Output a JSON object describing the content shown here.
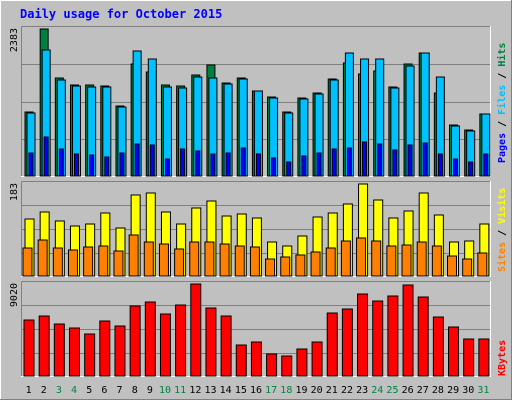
{
  "chart_data": {
    "type": "bar",
    "title": "Daily usage for October 2015",
    "categories": [
      "1",
      "2",
      "3",
      "4",
      "5",
      "6",
      "7",
      "8",
      "9",
      "10",
      "11",
      "12",
      "13",
      "14",
      "15",
      "16",
      "17",
      "18",
      "19",
      "20",
      "21",
      "22",
      "23",
      "24",
      "25",
      "26",
      "27",
      "28",
      "29",
      "30",
      "31"
    ],
    "weekend_days": [
      "3",
      "4",
      "10",
      "11",
      "17",
      "18",
      "24",
      "25",
      "31"
    ],
    "panels": [
      {
        "id": "hits",
        "max_label": "2383",
        "ylim": [
          0,
          2383
        ],
        "series": [
          {
            "name": "Hits",
            "color": "#008040",
            "values": [
              1030,
              2383,
              1590,
              1480,
              1470,
              1460,
              1140,
              1820,
              1690,
              1470,
              1460,
              1630,
              1800,
              1510,
              1590,
              1380,
              1280,
              1030,
              1260,
              1340,
              1580,
              1830,
              1660,
              1710,
              1450,
              1810,
              1990,
              1350,
              820,
              740,
              1010
            ]
          },
          {
            "name": "Files",
            "color": "#00c0ff",
            "values": [
              1020,
              2050,
              1550,
              1460,
              1450,
              1440,
              1120,
              2020,
              1890,
              1450,
              1430,
              1610,
              1590,
              1490,
              1580,
              1370,
              1270,
              1020,
              1250,
              1330,
              1560,
              2000,
              1890,
              1890,
              1430,
              1790,
              2000,
              1600,
              810,
              730,
              1000
            ]
          },
          {
            "name": "Pages",
            "color": "#0000ff",
            "values": [
              370,
              640,
              430,
              350,
              340,
              310,
              380,
              520,
              510,
              280,
              430,
              410,
              350,
              370,
              460,
              360,
              290,
              230,
              320,
              370,
              430,
              460,
              550,
              520,
              420,
              500,
              530,
              360,
              280,
              220,
              350
            ]
          }
        ]
      },
      {
        "id": "visits",
        "max_label": "183",
        "ylim": [
          0,
          183
        ],
        "series": [
          {
            "name": "Visits",
            "color": "#ffff00",
            "values": [
              113,
              127,
              109,
              100,
              103,
              126,
              95,
              162,
              165,
              127,
              103,
              135,
              150,
              120,
              124,
              116,
              68,
              60,
              80,
              118,
              125,
              143,
              183,
              151,
              115,
              130,
              165,
              122,
              68,
              70,
              104
            ]
          },
          {
            "name": "Sites",
            "color": "#ff8000",
            "values": [
              55,
              71,
              55,
              51,
              58,
              59,
              49,
              82,
              68,
              63,
              54,
              67,
              68,
              63,
              59,
              58,
              33,
              38,
              41,
              48,
              56,
              70,
              76,
              70,
              59,
              61,
              68,
              59,
              40,
              34,
              45
            ]
          }
        ]
      },
      {
        "id": "kbytes",
        "max_label": "9020",
        "ylim": [
          0,
          9020
        ],
        "series": [
          {
            "name": "KBytes",
            "color": "#ff0000",
            "values": [
              5500,
              5900,
              5100,
              4700,
              4100,
              5400,
              4900,
              6900,
              7300,
              6100,
              7000,
              9020,
              6700,
              5900,
              3000,
              3300,
              2200,
              2000,
              2600,
              3300,
              6200,
              6600,
              8000,
              7400,
              7800,
              8900,
              7700,
              5800,
              4800,
              3600,
              3600
            ]
          }
        ]
      }
    ],
    "legend": {
      "placement": "right",
      "hits_panel": [
        "Pages",
        "Files",
        "Hits"
      ],
      "visits_panel": [
        "Sites",
        "Visits"
      ],
      "kbytes_panel": [
        "KBytes"
      ]
    },
    "grid": true
  },
  "colors": {
    "background": "#c0c0c0",
    "plot": "#c0c0c0",
    "title": "#0000ff",
    "axis_text": "#000000",
    "weekend_label": "#008040",
    "grid": "#808080"
  }
}
